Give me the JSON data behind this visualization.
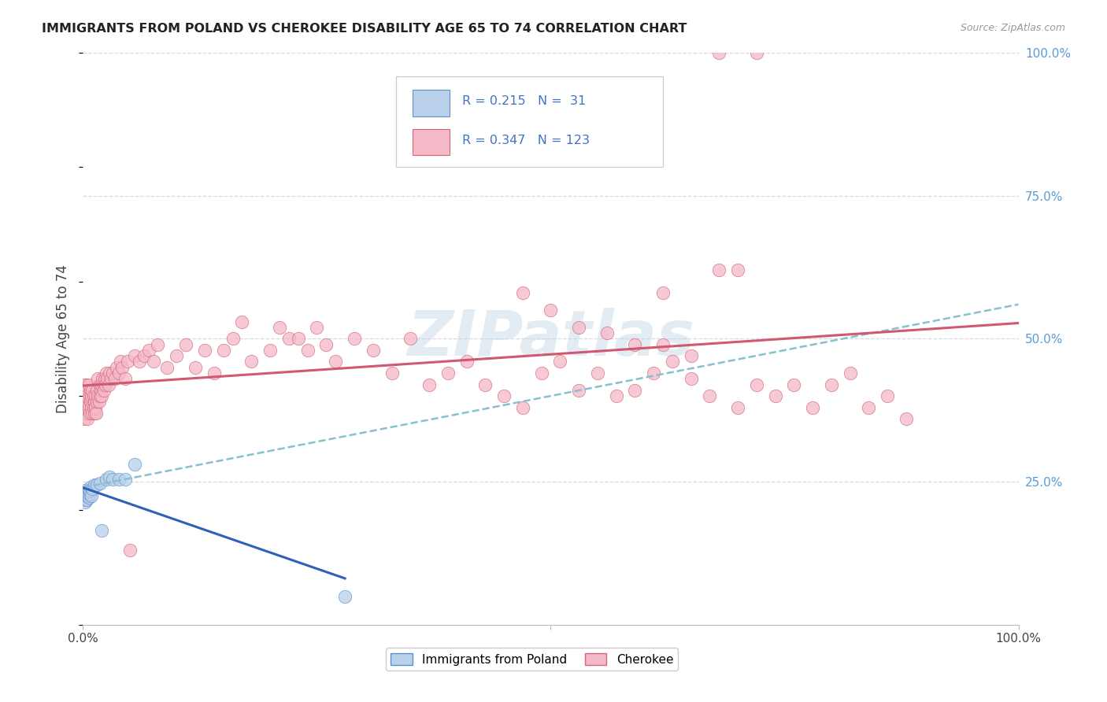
{
  "title": "IMMIGRANTS FROM POLAND VS CHEROKEE DISABILITY AGE 65 TO 74 CORRELATION CHART",
  "source": "Source: ZipAtlas.com",
  "ylabel": "Disability Age 65 to 74",
  "legend_label1": "Immigrants from Poland",
  "legend_label2": "Cherokee",
  "r1": 0.215,
  "n1": 31,
  "r2": 0.347,
  "n2": 123,
  "color_blue_fill": "#b8d0ea",
  "color_blue_edge": "#6090cc",
  "color_pink_fill": "#f5b8c8",
  "color_pink_edge": "#d06878",
  "line_blue_color": "#3060b8",
  "line_pink_color": "#d05870",
  "dashed_color": "#88c0d0",
  "text_color_blue": "#4472c4",
  "grid_color": "#d8d8e0",
  "bg_color": "#ffffff",
  "watermark_color": "#c8d8e8",
  "right_axis_color": "#5b9bd5",
  "ylim_min": 0.0,
  "ylim_max": 1.0,
  "xlim_min": 0.0,
  "xlim_max": 1.0,
  "blue_x": [
    0.001,
    0.001,
    0.002,
    0.002,
    0.002,
    0.003,
    0.003,
    0.003,
    0.004,
    0.004,
    0.004,
    0.005,
    0.005,
    0.006,
    0.006,
    0.007,
    0.007,
    0.008,
    0.009,
    0.01,
    0.012,
    0.015,
    0.018,
    0.02,
    0.025,
    0.028,
    0.032,
    0.038,
    0.045,
    0.055,
    0.28
  ],
  "blue_y": [
    0.225,
    0.22,
    0.23,
    0.215,
    0.235,
    0.222,
    0.218,
    0.228,
    0.225,
    0.232,
    0.218,
    0.225,
    0.23,
    0.222,
    0.235,
    0.228,
    0.235,
    0.24,
    0.225,
    0.238,
    0.245,
    0.245,
    0.248,
    0.165,
    0.255,
    0.258,
    0.255,
    0.255,
    0.255,
    0.28,
    0.05
  ],
  "pink_x": [
    0.001,
    0.001,
    0.002,
    0.002,
    0.003,
    0.003,
    0.003,
    0.004,
    0.004,
    0.005,
    0.005,
    0.006,
    0.006,
    0.007,
    0.007,
    0.008,
    0.008,
    0.009,
    0.009,
    0.01,
    0.01,
    0.011,
    0.011,
    0.012,
    0.012,
    0.013,
    0.013,
    0.014,
    0.015,
    0.015,
    0.016,
    0.016,
    0.017,
    0.018,
    0.018,
    0.019,
    0.02,
    0.02,
    0.021,
    0.022,
    0.022,
    0.023,
    0.024,
    0.025,
    0.026,
    0.027,
    0.028,
    0.03,
    0.032,
    0.034,
    0.036,
    0.038,
    0.04,
    0.042,
    0.045,
    0.048,
    0.05,
    0.055,
    0.06,
    0.065,
    0.07,
    0.075,
    0.08,
    0.09,
    0.1,
    0.11,
    0.12,
    0.13,
    0.14,
    0.15,
    0.16,
    0.17,
    0.18,
    0.2,
    0.21,
    0.22,
    0.23,
    0.24,
    0.25,
    0.26,
    0.27,
    0.29,
    0.31,
    0.33,
    0.35,
    0.37,
    0.39,
    0.41,
    0.43,
    0.45,
    0.47,
    0.49,
    0.51,
    0.53,
    0.55,
    0.57,
    0.59,
    0.61,
    0.63,
    0.65,
    0.67,
    0.7,
    0.72,
    0.74,
    0.76,
    0.78,
    0.8,
    0.82,
    0.84,
    0.86,
    0.88,
    0.62,
    0.68,
    0.7,
    0.47,
    0.5,
    0.53,
    0.56,
    0.59,
    0.62,
    0.65,
    0.68,
    0.72
  ],
  "pink_y": [
    0.38,
    0.36,
    0.42,
    0.4,
    0.37,
    0.39,
    0.42,
    0.38,
    0.41,
    0.36,
    0.4,
    0.38,
    0.42,
    0.37,
    0.4,
    0.39,
    0.41,
    0.38,
    0.4,
    0.37,
    0.41,
    0.38,
    0.4,
    0.37,
    0.39,
    0.38,
    0.4,
    0.37,
    0.39,
    0.41,
    0.4,
    0.43,
    0.39,
    0.4,
    0.42,
    0.41,
    0.42,
    0.4,
    0.43,
    0.42,
    0.41,
    0.43,
    0.42,
    0.44,
    0.43,
    0.42,
    0.44,
    0.43,
    0.44,
    0.43,
    0.45,
    0.44,
    0.46,
    0.45,
    0.43,
    0.46,
    0.13,
    0.47,
    0.46,
    0.47,
    0.48,
    0.46,
    0.49,
    0.45,
    0.47,
    0.49,
    0.45,
    0.48,
    0.44,
    0.48,
    0.5,
    0.53,
    0.46,
    0.48,
    0.52,
    0.5,
    0.5,
    0.48,
    0.52,
    0.49,
    0.46,
    0.5,
    0.48,
    0.44,
    0.5,
    0.42,
    0.44,
    0.46,
    0.42,
    0.4,
    0.38,
    0.44,
    0.46,
    0.41,
    0.44,
    0.4,
    0.41,
    0.44,
    0.46,
    0.43,
    0.4,
    0.38,
    0.42,
    0.4,
    0.42,
    0.38,
    0.42,
    0.44,
    0.38,
    0.4,
    0.36,
    0.58,
    0.62,
    0.62,
    0.58,
    0.55,
    0.52,
    0.51,
    0.49,
    0.49,
    0.47,
    1.0,
    1.0
  ]
}
